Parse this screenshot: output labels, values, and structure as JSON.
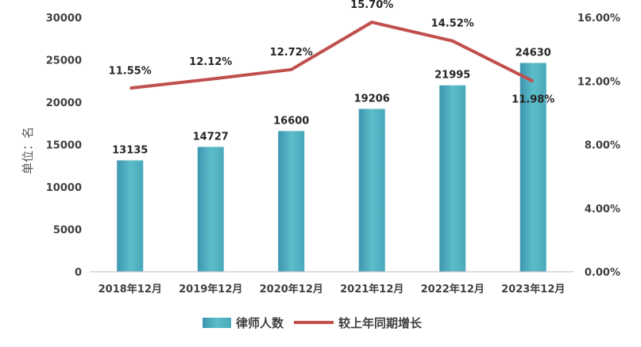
{
  "chart_data": {
    "type": "bar",
    "categories": [
      "2018年12月",
      "2019年12月",
      "2020年12月",
      "2021年12月",
      "2022年12月",
      "2023年12月"
    ],
    "series": [
      {
        "name": "律师人数",
        "type": "bar",
        "axis": "left",
        "values": [
          13135,
          14727,
          16600,
          19206,
          21995,
          24630
        ],
        "labels": [
          "13135",
          "14727",
          "16600",
          "19206",
          "21995",
          "24630"
        ],
        "color": "#4bacc6"
      },
      {
        "name": "较上年同期增长",
        "type": "line",
        "axis": "right",
        "values": [
          11.55,
          12.12,
          12.72,
          15.7,
          14.52,
          11.98
        ],
        "labels": [
          "11.55%",
          "12.12%",
          "12.72%",
          "15.70%",
          "14.52%",
          "11.98%"
        ],
        "color": "#c0504d"
      }
    ],
    "ylabel": "单位：名",
    "ylim": [
      0,
      30000
    ],
    "yticks": [
      "0",
      "5000",
      "10000",
      "15000",
      "20000",
      "25000",
      "30000"
    ],
    "y2lim": [
      0,
      16
    ],
    "y2ticks": [
      "0.00%",
      "4.00%",
      "8.00%",
      "12.00%",
      "16.00%"
    ],
    "grid": false,
    "legend_position": "bottom"
  }
}
